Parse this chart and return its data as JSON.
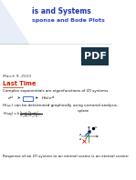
{
  "title_main": "is and Systems",
  "title_sub": "sponse and Bode Plots",
  "date": "March 9, 2010",
  "section": "Last Time",
  "line1": "Complex exponentials are eigenfunctions of LTI systems.",
  "line2": "H(ω₀) can be determined graphically using vectorial analysis.",
  "line3": "Response of an LTI system to an eternal cosine is an eternal cosine:",
  "bg_color": "#ffffff",
  "title_color": "#2233aa",
  "sub_color": "#3344cc",
  "body_color": "#111111",
  "date_color": "#444444",
  "section_color": "#cc2200",
  "box_color": "#2255bb",
  "pdf_bg": "#1a3545",
  "pdf_text": "#ffffff",
  "triangle_fill": "#e8eef8",
  "arrow_green": "#009900",
  "arrow_blue": "#0000cc",
  "arrow_red": "#cc0000"
}
